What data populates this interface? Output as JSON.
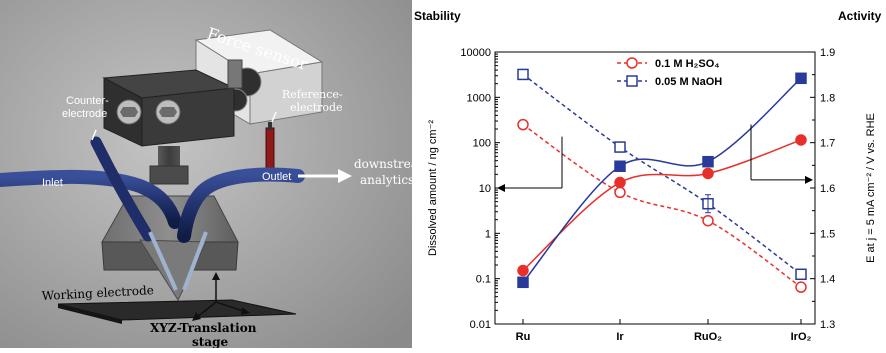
{
  "schematic": {
    "force_sensor": "Force sensor",
    "counter_electrode": [
      "Counter-",
      "electrode"
    ],
    "reference_electrode": [
      "Reference-",
      "electrode"
    ],
    "inlet": "Inlet",
    "outlet": "Outlet",
    "downstream": [
      "downstream",
      "analytics"
    ],
    "working_electrode": "Working electrode",
    "xyz_stage": [
      "XYZ-Translation",
      "stage"
    ]
  },
  "chart_data": {
    "type": "line",
    "stability_label": "Stability",
    "activity_label": "Activity",
    "categories": [
      "Ru",
      "Ir",
      "RuO₂",
      "IrO₂"
    ],
    "left_axis": {
      "label": "Dissolved amount / ng cm⁻²",
      "scale": "log",
      "range": [
        0.01,
        10000
      ],
      "ticks": [
        "0.01",
        "0.1",
        "1",
        "10",
        "100",
        "1000",
        "10000"
      ]
    },
    "right_axis": {
      "label": "E at j = 5 mA cm⁻² / V vs. RHE",
      "range": [
        1.3,
        1.9
      ],
      "ticks": [
        "1.3",
        "1.4",
        "1.5",
        "1.6",
        "1.7",
        "1.8",
        "1.9"
      ]
    },
    "legend": [
      "0.1 M H₂SO₄",
      "0.05 M NaOH"
    ],
    "colors": {
      "acid": "#e8302a",
      "base": "#2a3a9a"
    },
    "series": [
      {
        "name": "0.1 M H₂SO₄",
        "kind": "stability",
        "axis": "left",
        "values": [
          250,
          8,
          1.9,
          0.065
        ]
      },
      {
        "name": "0.05 M NaOH",
        "kind": "stability",
        "axis": "left",
        "values": [
          3200,
          80,
          4.5,
          0.125
        ]
      },
      {
        "name": "0.1 M H₂SO₄",
        "kind": "activity",
        "axis": "right",
        "values": [
          1.418,
          1.612,
          1.632,
          1.706
        ]
      },
      {
        "name": "0.05 M NaOH",
        "kind": "activity",
        "axis": "right",
        "values": [
          1.392,
          1.648,
          1.658,
          1.842
        ]
      }
    ]
  }
}
